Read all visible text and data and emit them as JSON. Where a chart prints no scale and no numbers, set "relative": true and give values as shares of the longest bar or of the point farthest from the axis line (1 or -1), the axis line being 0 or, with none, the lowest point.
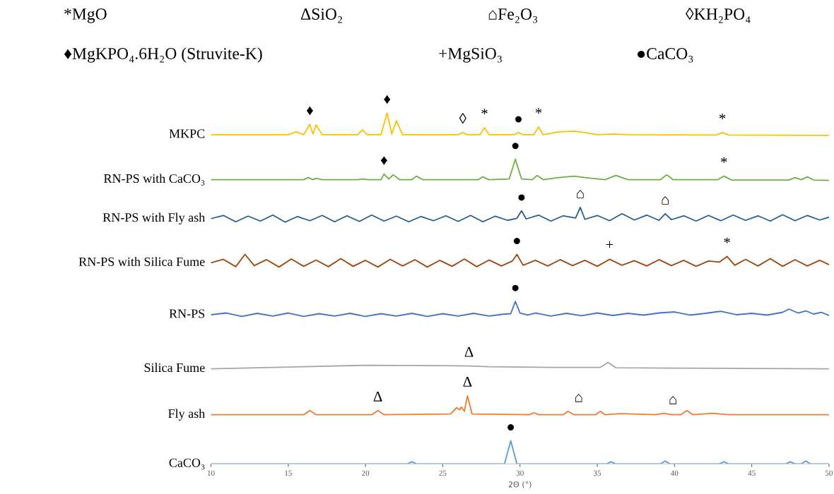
{
  "chart_data": {
    "type": "line",
    "relative": true,
    "xlabel": "2Θ (°)",
    "xlim": [
      10,
      50
    ],
    "xticks": [
      10,
      15,
      20,
      25,
      30,
      35,
      40,
      45,
      50
    ],
    "tick_labels": "x",
    "grid": false,
    "legend": false,
    "series": [
      {
        "name": "MKPC",
        "color": "#ffc000",
        "x": [
          10,
          15,
          15.5,
          16,
          16.4,
          16.6,
          16.8,
          17.2,
          19.5,
          19.8,
          20.1,
          21.0,
          21.4,
          21.7,
          22.0,
          22.4,
          26,
          26.3,
          26.6,
          27.4,
          27.7,
          28,
          29.6,
          29.9,
          30.2,
          30.9,
          31.2,
          31.5,
          32.5,
          33.5,
          34.2,
          35,
          36,
          37,
          42.7,
          43.1,
          43.5,
          50
        ],
        "values": [
          0.938,
          0.938,
          0.946,
          0.938,
          0.968,
          0.94,
          0.966,
          0.938,
          0.938,
          0.952,
          0.938,
          0.938,
          1.0,
          0.94,
          0.978,
          0.938,
          0.938,
          0.944,
          0.938,
          0.938,
          0.958,
          0.938,
          0.938,
          0.944,
          0.938,
          0.938,
          0.96,
          0.938,
          0.946,
          0.948,
          0.944,
          0.938,
          0.94,
          0.938,
          0.937,
          0.944,
          0.937,
          0.936
        ]
      },
      {
        "name": "RN-PS with CaCO₃",
        "color": "#70ad47",
        "x": [
          10,
          16,
          16.3,
          16.6,
          16.8,
          17.2,
          19.5,
          19.8,
          20.2,
          21.0,
          21.2,
          21.5,
          21.8,
          22.2,
          23.0,
          23.3,
          23.7,
          27.3,
          27.6,
          28,
          29.3,
          29.7,
          30.1,
          30.8,
          31.1,
          31.5,
          32.5,
          33.5,
          34.2,
          35.5,
          36.2,
          37,
          39.1,
          39.5,
          39.9,
          42.8,
          43.2,
          43.7,
          47.4,
          47.8,
          48.2,
          48.6,
          49,
          50
        ],
        "values": [
          0.81,
          0.81,
          0.816,
          0.81,
          0.814,
          0.81,
          0.81,
          0.812,
          0.81,
          0.81,
          0.826,
          0.812,
          0.824,
          0.81,
          0.81,
          0.82,
          0.81,
          0.81,
          0.818,
          0.81,
          0.812,
          0.868,
          0.812,
          0.81,
          0.822,
          0.81,
          0.816,
          0.82,
          0.816,
          0.81,
          0.822,
          0.81,
          0.81,
          0.824,
          0.81,
          0.81,
          0.82,
          0.809,
          0.809,
          0.816,
          0.81,
          0.818,
          0.809,
          0.808
        ]
      },
      {
        "name": "RN-PS with Fly ash",
        "color": "#255e91",
        "x": [
          10,
          10.8,
          11.6,
          12.4,
          13.2,
          14,
          14.8,
          15.6,
          16.4,
          17.2,
          18,
          18.8,
          19.6,
          20.4,
          21.2,
          22,
          22.8,
          23.6,
          24.4,
          25.2,
          26,
          26.8,
          27.6,
          28.4,
          29.2,
          29.8,
          30.1,
          30.4,
          31.2,
          32,
          32.8,
          33.6,
          33.9,
          34.2,
          35,
          35.8,
          36.6,
          37.4,
          38.2,
          39,
          39.4,
          39.8,
          40.6,
          41.4,
          42.2,
          43,
          43.8,
          44.6,
          45.4,
          46.2,
          47,
          47.8,
          48.6,
          49.4,
          50
        ],
        "values": [
          0.699,
          0.708,
          0.69,
          0.706,
          0.692,
          0.709,
          0.689,
          0.705,
          0.693,
          0.708,
          0.69,
          0.707,
          0.691,
          0.709,
          0.692,
          0.706,
          0.69,
          0.705,
          0.693,
          0.707,
          0.691,
          0.708,
          0.69,
          0.706,
          0.694,
          0.7,
          0.721,
          0.698,
          0.709,
          0.692,
          0.707,
          0.701,
          0.731,
          0.697,
          0.708,
          0.693,
          0.713,
          0.695,
          0.709,
          0.694,
          0.713,
          0.696,
          0.707,
          0.692,
          0.708,
          0.693,
          0.709,
          0.694,
          0.707,
          0.692,
          0.71,
          0.693,
          0.708,
          0.695,
          0.703
        ]
      },
      {
        "name": "RN-PS with Silica Fume",
        "color": "#9e480e",
        "x": [
          10,
          10.8,
          11.6,
          12.2,
          12.8,
          13.6,
          14.4,
          15.2,
          16,
          16.8,
          17.6,
          18.4,
          19.2,
          20,
          20.8,
          21.6,
          22.4,
          23.2,
          24,
          24.8,
          25.6,
          26.4,
          27.2,
          28,
          28.8,
          29.5,
          29.8,
          30.2,
          31,
          31.8,
          32.6,
          33.4,
          34.2,
          35,
          35.8,
          36.6,
          37.4,
          38.2,
          39,
          39.8,
          40.6,
          41.4,
          42.2,
          42.9,
          43.4,
          43.9,
          44.6,
          45.4,
          46.2,
          47,
          47.8,
          48.6,
          49.4,
          50
        ],
        "values": [
          0.573,
          0.583,
          0.562,
          0.597,
          0.565,
          0.582,
          0.561,
          0.584,
          0.563,
          0.581,
          0.562,
          0.585,
          0.563,
          0.58,
          0.561,
          0.583,
          0.564,
          0.582,
          0.561,
          0.58,
          0.563,
          0.584,
          0.562,
          0.581,
          0.564,
          0.578,
          0.597,
          0.566,
          0.58,
          0.564,
          0.582,
          0.565,
          0.58,
          0.563,
          0.583,
          0.566,
          0.579,
          0.564,
          0.582,
          0.565,
          0.58,
          0.563,
          0.578,
          0.575,
          0.591,
          0.566,
          0.583,
          0.564,
          0.585,
          0.563,
          0.582,
          0.564,
          0.58,
          0.568
        ]
      },
      {
        "name": "RN-PS",
        "color": "#4472c4",
        "x": [
          10,
          11,
          12,
          13,
          14,
          15,
          16,
          17,
          18,
          19,
          20,
          21,
          22,
          23,
          24,
          25,
          26,
          27,
          28,
          29,
          29.4,
          29.7,
          30,
          30.5,
          31,
          32,
          33,
          34,
          35,
          36,
          37,
          38,
          39,
          40,
          41,
          42,
          43,
          44,
          45,
          46,
          47,
          47.4,
          48,
          48.5,
          49,
          49.5,
          50
        ],
        "values": [
          0.425,
          0.43,
          0.42,
          0.429,
          0.421,
          0.43,
          0.42,
          0.428,
          0.421,
          0.429,
          0.42,
          0.428,
          0.421,
          0.429,
          0.42,
          0.428,
          0.421,
          0.429,
          0.421,
          0.427,
          0.428,
          0.463,
          0.43,
          0.424,
          0.43,
          0.421,
          0.429,
          0.422,
          0.43,
          0.423,
          0.429,
          0.424,
          0.43,
          0.433,
          0.424,
          0.429,
          0.435,
          0.425,
          0.429,
          0.424,
          0.432,
          0.441,
          0.43,
          0.436,
          0.427,
          0.432,
          0.423
        ]
      },
      {
        "name": "Silica Fume",
        "color": "#a5a5a5",
        "x": [
          10,
          15,
          20,
          25,
          26.7,
          28,
          32,
          35.2,
          35.7,
          36.2,
          40,
          45,
          50
        ],
        "values": [
          0.271,
          0.276,
          0.281,
          0.28,
          0.279,
          0.277,
          0.275,
          0.275,
          0.289,
          0.274,
          0.273,
          0.272,
          0.271
        ]
      },
      {
        "name": "Fly ash",
        "color": "#ed7d31",
        "x": [
          10,
          16,
          16.4,
          16.8,
          20.4,
          20.8,
          21.2,
          25.5,
          25.9,
          26.1,
          26.2,
          26.4,
          26.6,
          26.9,
          30.6,
          30.9,
          31.2,
          32.8,
          33.1,
          33.5,
          34.9,
          35.2,
          35.5,
          36.5,
          38.8,
          39.3,
          39.8,
          40.4,
          40.8,
          41.2,
          42.5,
          43.5,
          50
        ],
        "values": [
          0.14,
          0.14,
          0.152,
          0.14,
          0.14,
          0.152,
          0.14,
          0.142,
          0.16,
          0.154,
          0.162,
          0.15,
          0.194,
          0.142,
          0.14,
          0.146,
          0.14,
          0.14,
          0.15,
          0.14,
          0.14,
          0.15,
          0.14,
          0.143,
          0.14,
          0.144,
          0.14,
          0.14,
          0.152,
          0.14,
          0.144,
          0.14,
          0.14
        ]
      },
      {
        "name": "CaCO₃",
        "color": "#5b9bd5",
        "x": [
          10,
          22.7,
          23,
          23.3,
          29.0,
          29.4,
          29.8,
          35.6,
          35.9,
          36.2,
          39.1,
          39.4,
          39.7,
          42.9,
          43.2,
          43.5,
          47.2,
          47.5,
          47.8,
          48.2,
          48.5,
          48.8,
          50
        ],
        "values": [
          0,
          0,
          0.006,
          0,
          0,
          0.066,
          0,
          0,
          0.006,
          0,
          0,
          0.008,
          0,
          0,
          0.006,
          0,
          0,
          0.006,
          0,
          0,
          0.008,
          0,
          0
        ]
      }
    ],
    "annotations": [
      "*MgO",
      "ΔSiO₂",
      "⌂Fe₂O₃",
      "◊KH₂PO₄",
      "♦MgKPO₄.6H₂O (Struvite-K)",
      "+MgSiO₃",
      "●CaCO₃",
      {
        "text": "♦",
        "x": 16.4,
        "y": 0.968
      },
      {
        "text": "♦",
        "x": 21.4,
        "y": 1.0
      },
      {
        "text": "◊",
        "x": 26.3,
        "y": 0.944
      },
      {
        "text": "*",
        "x": 27.7,
        "y": 0.958
      },
      {
        "text": "●",
        "x": 29.9,
        "y": 0.944
      },
      {
        "text": "*",
        "x": 31.2,
        "y": 0.96
      },
      {
        "text": "*",
        "x": 43.1,
        "y": 0.944
      },
      {
        "text": "♦",
        "x": 21.2,
        "y": 0.826
      },
      {
        "text": "●",
        "x": 29.7,
        "y": 0.868
      },
      {
        "text": "*",
        "x": 43.2,
        "y": 0.82
      },
      {
        "text": "●",
        "x": 30.1,
        "y": 0.721
      },
      {
        "text": "⌂",
        "x": 33.9,
        "y": 0.731
      },
      {
        "text": "⌂",
        "x": 39.4,
        "y": 0.713
      },
      {
        "text": "●",
        "x": 29.8,
        "y": 0.597
      },
      {
        "text": "+",
        "x": 35.8,
        "y": 0.585
      },
      {
        "text": "*",
        "x": 43.4,
        "y": 0.591
      },
      {
        "text": "●",
        "x": 29.7,
        "y": 0.463
      },
      {
        "text": "Δ",
        "x": 26.7,
        "y": 0.279
      },
      {
        "text": "Δ",
        "x": 20.8,
        "y": 0.152
      },
      {
        "text": "Δ",
        "x": 26.6,
        "y": 0.194
      },
      {
        "text": "⌂",
        "x": 33.8,
        "y": 0.15
      },
      {
        "text": "⌂",
        "x": 39.9,
        "y": 0.144
      },
      {
        "text": "●",
        "x": 29.4,
        "y": 0.066
      }
    ]
  }
}
